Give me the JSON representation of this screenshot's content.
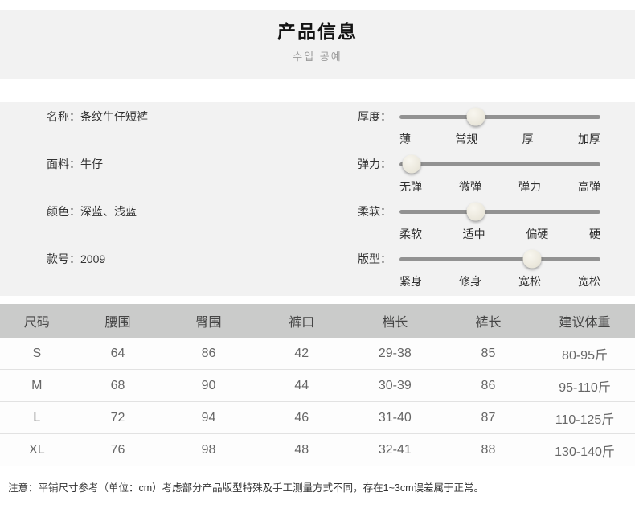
{
  "header": {
    "title": "产品信息",
    "subtitle": "수입 공예"
  },
  "info": {
    "rows": [
      "名称：条纹牛仔短裤",
      "面料：牛仔",
      "颜色：深蓝、浅蓝",
      "款号：2009"
    ]
  },
  "sliders": [
    {
      "label": "厚度：",
      "ticks": [
        "薄",
        "常规",
        "厚",
        "加厚"
      ],
      "level": 2,
      "selected": "常规"
    },
    {
      "label": "弹力：",
      "ticks": [
        "无弹",
        "微弹",
        "弹力",
        "高弹"
      ],
      "level": 1,
      "selected": "无弹"
    },
    {
      "label": "柔软：",
      "ticks": [
        "柔软",
        "适中",
        "偏硬",
        "硬"
      ],
      "level": 2,
      "selected": "适中"
    },
    {
      "label": "版型：",
      "ticks": [
        "紧身",
        "修身",
        "宽松",
        "宽松"
      ],
      "level": 3,
      "selected": "宽松"
    }
  ],
  "size_table": {
    "headers": [
      "尺码",
      "腰围",
      "臀围",
      "裤口",
      "档长",
      "裤长",
      "建议体重"
    ],
    "rows": [
      [
        "S",
        "64",
        "86",
        "42",
        "29-38",
        "85",
        "80-95斤"
      ],
      [
        "M",
        "68",
        "90",
        "44",
        "30-39",
        "86",
        "95-110斤"
      ],
      [
        "L",
        "72",
        "94",
        "46",
        "31-40",
        "87",
        "110-125斤"
      ],
      [
        "XL",
        "76",
        "98",
        "48",
        "32-41",
        "88",
        "130-140斤"
      ]
    ]
  },
  "note": "注意：平铺尺寸参考（单位：cm）考虑部分产品版型特殊及手工测量方式不同，存在1~3cm误差属于正常。",
  "colors": {
    "section_bg": "#f2f2f2",
    "table_header_bg": "#cacbca",
    "track": "#929292",
    "knob": "#edeadf"
  }
}
